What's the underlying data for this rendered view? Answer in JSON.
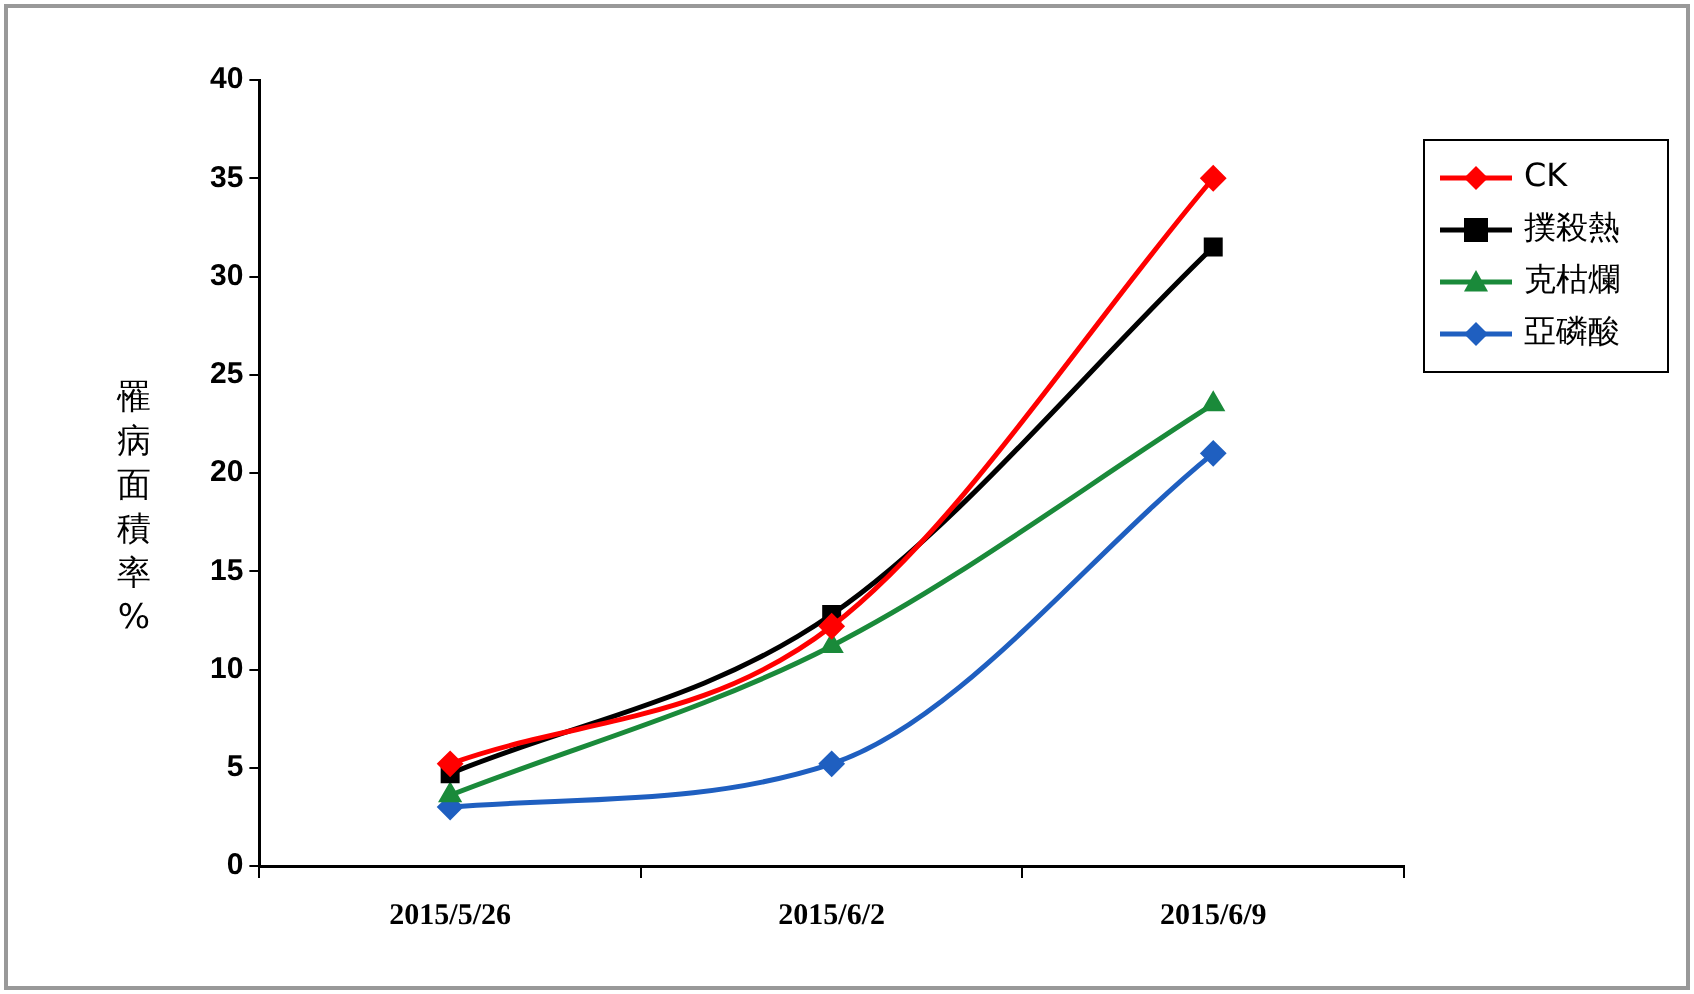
{
  "chart_data": {
    "type": "line",
    "ylabel": "罹病面積率%",
    "categories": [
      "2015/5/26",
      "2015/6/2",
      "2015/6/9"
    ],
    "ylim": [
      0,
      40
    ],
    "yticks": [
      0,
      5,
      10,
      15,
      20,
      25,
      30,
      35,
      40
    ],
    "grid": false,
    "legend": "right",
    "series": [
      {
        "name": "CK",
        "color": "#ff0000",
        "marker": "diamond",
        "values": [
          5.2,
          12.2,
          35
        ]
      },
      {
        "name": "撲殺熱",
        "color": "#000000",
        "marker": "square",
        "values": [
          4.7,
          12.8,
          31.5
        ]
      },
      {
        "name": "克枯爛",
        "color": "#1a8a3a",
        "marker": "triangle",
        "values": [
          3.6,
          11.2,
          23.5
        ]
      },
      {
        "name": "亞磷酸",
        "color": "#1f5fc0",
        "marker": "diamond",
        "values": [
          3.0,
          5.2,
          21.0
        ]
      }
    ]
  }
}
